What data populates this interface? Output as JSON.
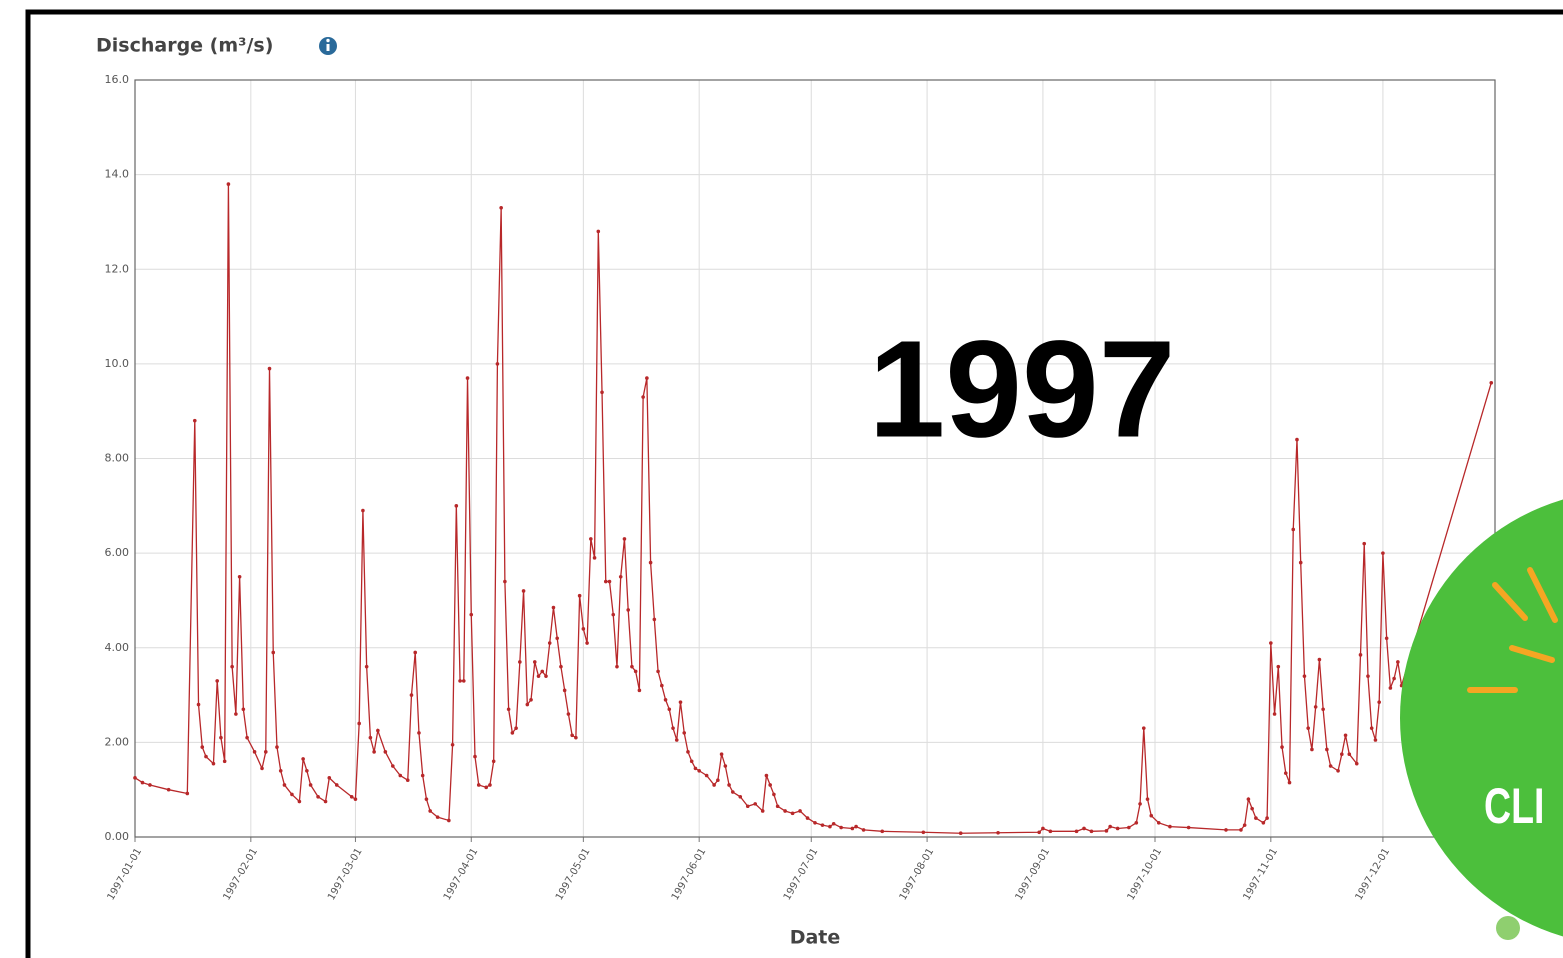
{
  "chart_data": {
    "type": "line",
    "title": "Discharge (m³/s)",
    "x_label": "Date",
    "overlay_text": "1997",
    "logo_text": "CLI",
    "color": "#b8282a",
    "grid": true,
    "xlim": [
      "1997-01-01",
      "1997-12-31"
    ],
    "xticks": [
      "1997-01-01",
      "1997-02-01",
      "1997-03-01",
      "1997-04-01",
      "1997-05-01",
      "1997-06-01",
      "1997-07-01",
      "1997-08-01",
      "1997-09-01",
      "1997-10-01",
      "1997-11-01",
      "1997-12-01"
    ],
    "ylim": [
      0,
      16
    ],
    "yticks": [
      {
        "value": 0,
        "label": "0.00"
      },
      {
        "value": 2,
        "label": "2.00"
      },
      {
        "value": 4,
        "label": "4.00"
      },
      {
        "value": 6,
        "label": "6.00"
      },
      {
        "value": 8,
        "label": "8.00"
      },
      {
        "value": 10,
        "label": "10.0"
      },
      {
        "value": 12,
        "label": "12.0"
      },
      {
        "value": 14,
        "label": "14.0"
      },
      {
        "value": 16,
        "label": "16.0"
      }
    ],
    "x": [
      "1997-01-01",
      "1997-01-03",
      "1997-01-05",
      "1997-01-10",
      "1997-01-15",
      "1997-01-17",
      "1997-01-18",
      "1997-01-19",
      "1997-01-20",
      "1997-01-22",
      "1997-01-23",
      "1997-01-24",
      "1997-01-25",
      "1997-01-26",
      "1997-01-27",
      "1997-01-28",
      "1997-01-29",
      "1997-01-30",
      "1997-01-31",
      "1997-02-02",
      "1997-02-04",
      "1997-02-05",
      "1997-02-06",
      "1997-02-07",
      "1997-02-08",
      "1997-02-09",
      "1997-02-10",
      "1997-02-12",
      "1997-02-14",
      "1997-02-15",
      "1997-02-16",
      "1997-02-17",
      "1997-02-19",
      "1997-02-21",
      "1997-02-22",
      "1997-02-24",
      "1997-02-28",
      "1997-03-01",
      "1997-03-02",
      "1997-03-03",
      "1997-03-04",
      "1997-03-05",
      "1997-03-06",
      "1997-03-07",
      "1997-03-09",
      "1997-03-11",
      "1997-03-13",
      "1997-03-15",
      "1997-03-16",
      "1997-03-17",
      "1997-03-18",
      "1997-03-19",
      "1997-03-20",
      "1997-03-21",
      "1997-03-23",
      "1997-03-26",
      "1997-03-27",
      "1997-03-28",
      "1997-03-29",
      "1997-03-30",
      "1997-03-31",
      "1997-04-01",
      "1997-04-02",
      "1997-04-03",
      "1997-04-05",
      "1997-04-06",
      "1997-04-07",
      "1997-04-08",
      "1997-04-09",
      "1997-04-10",
      "1997-04-11",
      "1997-04-12",
      "1997-04-13",
      "1997-04-14",
      "1997-04-15",
      "1997-04-16",
      "1997-04-17",
      "1997-04-18",
      "1997-04-19",
      "1997-04-20",
      "1997-04-21",
      "1997-04-22",
      "1997-04-23",
      "1997-04-24",
      "1997-04-25",
      "1997-04-26",
      "1997-04-27",
      "1997-04-28",
      "1997-04-29",
      "1997-04-30",
      "1997-05-01",
      "1997-05-02",
      "1997-05-03",
      "1997-05-04",
      "1997-05-05",
      "1997-05-06",
      "1997-05-07",
      "1997-05-08",
      "1997-05-09",
      "1997-05-10",
      "1997-05-11",
      "1997-05-12",
      "1997-05-13",
      "1997-05-14",
      "1997-05-15",
      "1997-05-16",
      "1997-05-17",
      "1997-05-18",
      "1997-05-19",
      "1997-05-20",
      "1997-05-21",
      "1997-05-22",
      "1997-05-23",
      "1997-05-24",
      "1997-05-25",
      "1997-05-26",
      "1997-05-27",
      "1997-05-28",
      "1997-05-29",
      "1997-05-30",
      "1997-05-31",
      "1997-06-01",
      "1997-06-03",
      "1997-06-05",
      "1997-06-06",
      "1997-06-07",
      "1997-06-08",
      "1997-06-09",
      "1997-06-10",
      "1997-06-12",
      "1997-06-14",
      "1997-06-16",
      "1997-06-18",
      "1997-06-19",
      "1997-06-20",
      "1997-06-21",
      "1997-06-22",
      "1997-06-24",
      "1997-06-26",
      "1997-06-28",
      "1997-06-30",
      "1997-07-02",
      "1997-07-04",
      "1997-07-06",
      "1997-07-07",
      "1997-07-09",
      "1997-07-12",
      "1997-07-13",
      "1997-07-15",
      "1997-07-20",
      "1997-07-31",
      "1997-08-10",
      "1997-08-20",
      "1997-08-31",
      "1997-09-01",
      "1997-09-03",
      "1997-09-10",
      "1997-09-12",
      "1997-09-14",
      "1997-09-18",
      "1997-09-19",
      "1997-09-21",
      "1997-09-24",
      "1997-09-26",
      "1997-09-27",
      "1997-09-28",
      "1997-09-29",
      "1997-09-30",
      "1997-10-02",
      "1997-10-05",
      "1997-10-10",
      "1997-10-20",
      "1997-10-24",
      "1997-10-25",
      "1997-10-26",
      "1997-10-27",
      "1997-10-28",
      "1997-10-30",
      "1997-10-31",
      "1997-11-01",
      "1997-11-02",
      "1997-11-03",
      "1997-11-04",
      "1997-11-05",
      "1997-11-06",
      "1997-11-07",
      "1997-11-08",
      "1997-11-09",
      "1997-11-10",
      "1997-11-11",
      "1997-11-12",
      "1997-11-13",
      "1997-11-14",
      "1997-11-15",
      "1997-11-16",
      "1997-11-17",
      "1997-11-19",
      "1997-11-20",
      "1997-11-21",
      "1997-11-22",
      "1997-11-24",
      "1997-11-25",
      "1997-11-26",
      "1997-11-27",
      "1997-11-28",
      "1997-11-29",
      "1997-11-30",
      "1997-12-01",
      "1997-12-02",
      "1997-12-03",
      "1997-12-04",
      "1997-12-05",
      "1997-12-06",
      "1997-12-30"
    ],
    "values": [
      1.25,
      1.15,
      1.1,
      1.0,
      0.92,
      8.8,
      2.8,
      1.9,
      1.7,
      1.55,
      3.3,
      2.1,
      1.6,
      13.8,
      3.6,
      2.6,
      5.5,
      2.7,
      2.1,
      1.8,
      1.45,
      1.8,
      9.9,
      3.9,
      1.9,
      1.4,
      1.1,
      0.9,
      0.75,
      1.65,
      1.4,
      1.1,
      0.85,
      0.75,
      1.25,
      1.1,
      0.85,
      0.8,
      2.4,
      6.9,
      3.6,
      2.1,
      1.8,
      2.25,
      1.8,
      1.5,
      1.3,
      1.2,
      3.0,
      3.9,
      2.2,
      1.3,
      0.8,
      0.55,
      0.42,
      0.35,
      1.95,
      7.0,
      3.3,
      3.3,
      9.7,
      4.7,
      1.7,
      1.1,
      1.05,
      1.1,
      1.6,
      10.0,
      13.3,
      5.4,
      2.7,
      2.2,
      2.3,
      3.7,
      5.2,
      2.8,
      2.9,
      3.7,
      3.4,
      3.5,
      3.4,
      4.1,
      4.85,
      4.2,
      3.6,
      3.1,
      2.6,
      2.15,
      2.1,
      5.1,
      4.4,
      4.1,
      6.3,
      5.9,
      12.8,
      9.4,
      5.4,
      5.4,
      4.7,
      3.6,
      5.5,
      6.3,
      4.8,
      3.6,
      3.5,
      3.1,
      9.3,
      9.7,
      5.8,
      4.6,
      3.5,
      3.2,
      2.9,
      2.7,
      2.3,
      2.05,
      2.85,
      2.2,
      1.8,
      1.6,
      1.45,
      1.4,
      1.3,
      1.1,
      1.2,
      1.75,
      1.5,
      1.1,
      0.95,
      0.85,
      0.65,
      0.7,
      0.55,
      1.3,
      1.1,
      0.9,
      0.65,
      0.55,
      0.5,
      0.55,
      0.4,
      0.3,
      0.25,
      0.22,
      0.28,
      0.2,
      0.18,
      0.22,
      0.15,
      0.12,
      0.1,
      0.08,
      0.09,
      0.1,
      0.18,
      0.12,
      0.12,
      0.18,
      0.12,
      0.13,
      0.22,
      0.18,
      0.2,
      0.3,
      0.7,
      2.3,
      0.8,
      0.45,
      0.3,
      0.22,
      0.2,
      0.15,
      0.15,
      0.25,
      0.8,
      0.6,
      0.4,
      0.3,
      0.4,
      4.1,
      2.6,
      3.6,
      1.9,
      1.35,
      1.15,
      6.5,
      8.4,
      5.8,
      3.4,
      2.3,
      1.85,
      2.75,
      3.75,
      2.7,
      1.85,
      1.5,
      1.4,
      1.75,
      2.15,
      1.75,
      1.55,
      3.85,
      6.2,
      3.4,
      2.3,
      2.05,
      2.85,
      6.0,
      4.2,
      3.15,
      3.35,
      3.7,
      3.2,
      9.6
    ]
  }
}
